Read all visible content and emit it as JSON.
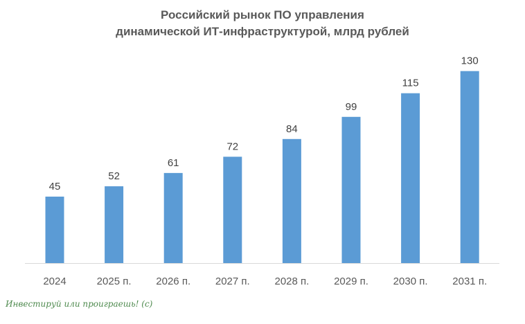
{
  "chart_data": {
    "type": "bar",
    "title_lines": [
      "Российский рынок ПО управления",
      "динамической ИТ-инфраструктурой, млрд рублей"
    ],
    "categories": [
      "2024",
      "2025 п.",
      "2026 п.",
      "2027 п.",
      "2028 п.",
      "2029 п.",
      "2030 п.",
      "2031 п."
    ],
    "values": [
      45,
      52,
      61,
      72,
      84,
      99,
      115,
      130
    ],
    "xlabel": "",
    "ylabel": "",
    "ylim": [
      0,
      135
    ],
    "grid": false,
    "bar_color": "#5b9bd5"
  },
  "watermark": "Инвестируй или проиграешь! (с)"
}
